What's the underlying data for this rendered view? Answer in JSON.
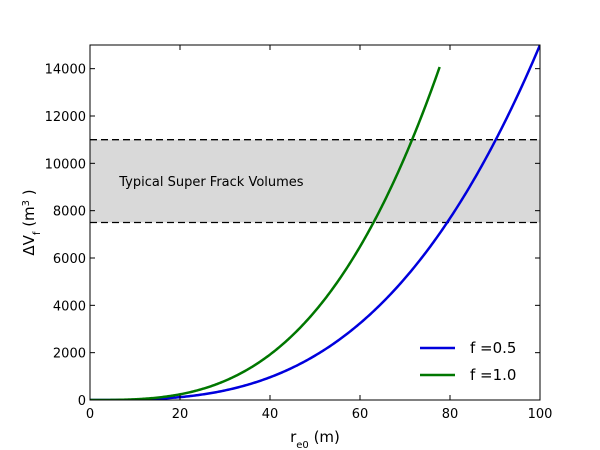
{
  "chart_data": {
    "type": "line",
    "xlabel_main": "r",
    "xlabel_sub": "e0",
    "xlabel_unit": " (m)",
    "ylabel_main": "ΔV",
    "ylabel_sub": "f",
    "ylabel_unit_open": " (m",
    "ylabel_unit_sup": "3",
    "ylabel_unit_close": " )",
    "xlim": [
      0,
      100
    ],
    "ylim": [
      0,
      15000
    ],
    "x_ticks": [
      0,
      20,
      40,
      60,
      80,
      100
    ],
    "y_ticks": [
      0,
      2000,
      4000,
      6000,
      8000,
      10000,
      12000,
      14000
    ],
    "grid": false,
    "legend_position": "bottom-right",
    "band": {
      "label": "Typical Super Frack Volumes",
      "y_low": 7500,
      "y_high": 11000,
      "color": "#d9d9d9"
    },
    "series": [
      {
        "name": "f =0.5",
        "color": "#0000dd",
        "exponent": 3,
        "x": [
          0,
          10,
          20,
          30,
          40,
          50,
          60,
          70,
          80,
          90,
          100
        ],
        "y": [
          0,
          15,
          120,
          405,
          960,
          1875,
          3240,
          5145,
          7680,
          10935,
          15000
        ]
      },
      {
        "name": "f =1.0",
        "color": "#007700",
        "exponent": 3,
        "x": [
          0,
          10,
          20,
          30,
          40,
          50,
          60,
          70,
          75,
          77.7
        ],
        "y": [
          0,
          30,
          240,
          810,
          1920,
          3750,
          6480,
          10290,
          12656,
          14070
        ]
      }
    ]
  }
}
